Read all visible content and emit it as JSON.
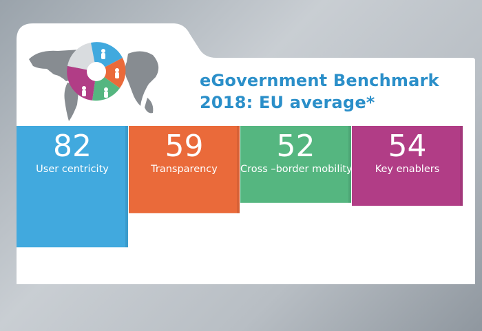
{
  "title": {
    "line1": "eGovernment Benchmark",
    "line2": "2018: EU average*"
  },
  "colors": {
    "title": "#2b8fc9",
    "panel": "#ffffff",
    "map": "#8a8f94"
  },
  "chart_data": {
    "type": "bar",
    "title": "eGovernment Benchmark 2018: EU average*",
    "categories": [
      "User centricity",
      "Transparency",
      "Cross –border mobility",
      "Key enablers"
    ],
    "values": [
      82,
      59,
      52,
      54
    ],
    "colors": [
      "#41a9de",
      "#ea6a3a",
      "#55b680",
      "#b13d86"
    ],
    "ylim": [
      0,
      100
    ],
    "xlabel": "",
    "ylabel": ""
  }
}
